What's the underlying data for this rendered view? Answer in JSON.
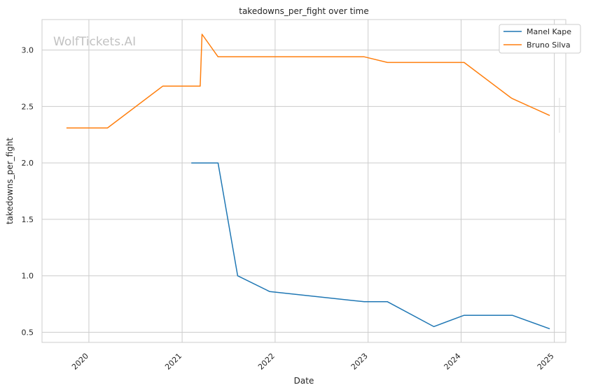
{
  "chart_data": {
    "type": "line",
    "title": "takedowns_per_fight over time",
    "xlabel": "Date",
    "ylabel": "takedowns_per_fight",
    "watermark": "WolfTickets.AI",
    "x_ticks": [
      "2020",
      "2021",
      "2022",
      "2023",
      "2024",
      "2025"
    ],
    "y_ticks": [
      "0.5",
      "1.0",
      "1.5",
      "2.0",
      "2.5",
      "3.0"
    ],
    "xlim": [
      "2019-07-01",
      "2025-02-15"
    ],
    "ylim": [
      0.41,
      3.27
    ],
    "grid": true,
    "legend_position": "top-right",
    "series": [
      {
        "name": "Manel Kape",
        "color": "#1f77b4",
        "points": [
          {
            "x": "2021-02-06",
            "y": 2.0
          },
          {
            "x": "2021-05-22",
            "y": 2.0
          },
          {
            "x": "2021-08-07",
            "y": 1.0
          },
          {
            "x": "2021-12-11",
            "y": 0.86
          },
          {
            "x": "2022-12-17",
            "y": 0.77
          },
          {
            "x": "2023-03-18",
            "y": 0.77
          },
          {
            "x": "2023-09-16",
            "y": 0.55
          },
          {
            "x": "2024-01-13",
            "y": 0.65
          },
          {
            "x": "2024-07-20",
            "y": 0.65
          },
          {
            "x": "2024-12-14",
            "y": 0.53
          }
        ]
      },
      {
        "name": "Bruno Silva",
        "color": "#ff7f0e",
        "points": [
          {
            "x": "2019-10-05",
            "y": 2.31
          },
          {
            "x": "2020-03-14",
            "y": 2.31
          },
          {
            "x": "2020-10-17",
            "y": 2.68
          },
          {
            "x": "2021-03-13",
            "y": 2.68
          },
          {
            "x": "2021-03-20",
            "y": 3.14
          },
          {
            "x": "2021-05-22",
            "y": 2.94
          },
          {
            "x": "2022-12-17",
            "y": 2.94
          },
          {
            "x": "2023-03-18",
            "y": 2.89
          },
          {
            "x": "2024-01-13",
            "y": 2.89
          },
          {
            "x": "2024-07-13",
            "y": 2.58
          },
          {
            "x": "2024-07-20",
            "y": 2.57
          },
          {
            "x": "2024-12-14",
            "y": 2.42
          }
        ]
      }
    ]
  }
}
